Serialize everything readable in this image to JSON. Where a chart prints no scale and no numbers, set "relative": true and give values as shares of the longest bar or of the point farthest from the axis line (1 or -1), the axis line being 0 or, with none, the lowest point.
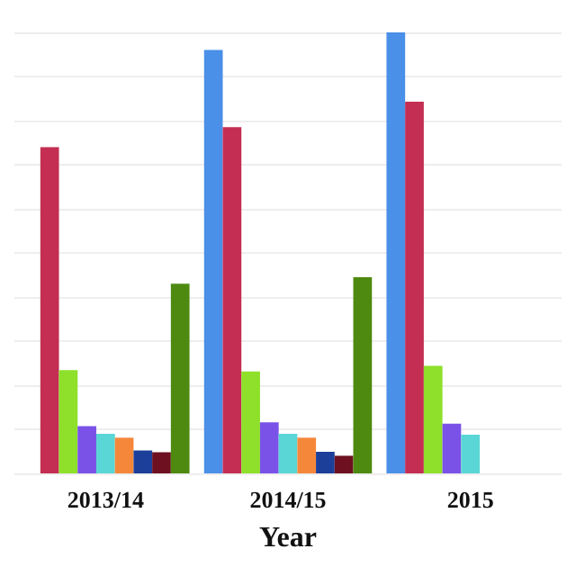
{
  "chart_data": {
    "type": "bar",
    "xlabel": "Year",
    "categories": [
      "2013/14",
      "2014/15",
      "2015"
    ],
    "relative": true,
    "grid": "y",
    "series": [
      {
        "color": "#4a8fe8",
        "values": [
          null,
          0.96,
          1
        ]
      },
      {
        "color": "#c42e52",
        "values": [
          0.74,
          0.785,
          0.843
        ]
      },
      {
        "color": "#8ee02a",
        "values": [
          0.234,
          0.231,
          0.244
        ]
      },
      {
        "color": "#7a52e8",
        "values": [
          0.107,
          0.116,
          0.113
        ]
      },
      {
        "color": "#5ad6d6",
        "values": [
          0.09,
          0.09,
          0.088
        ]
      },
      {
        "color": "#f5873a",
        "values": [
          0.081,
          0.081,
          null
        ]
      },
      {
        "color": "#1c3f9a",
        "values": [
          0.052,
          0.049,
          null
        ]
      },
      {
        "color": "#6e1020",
        "values": [
          0.048,
          0.04,
          null
        ]
      },
      {
        "color": "#4e8a10",
        "values": [
          0.43,
          0.445,
          null
        ]
      }
    ]
  }
}
